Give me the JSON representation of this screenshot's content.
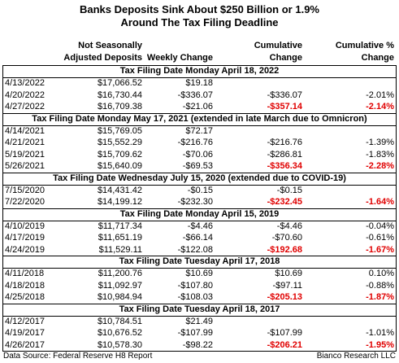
{
  "title": [
    "Banks Deposits Sink About $250 Billion or 1.9%",
    "Around The Tax Filing Deadline"
  ],
  "columns": [
    [
      "Not Seasonally",
      "Adjusted Deposits"
    ],
    [
      "Weekly Change"
    ],
    [
      "Cumulative",
      "Change"
    ],
    [
      "Cumulative %",
      "Change"
    ]
  ],
  "sections": [
    {
      "heading": "Tax Filing Date Monday April 18, 2022",
      "rows": [
        {
          "cells": [
            "4/13/2022",
            "$17,066.52",
            "$19.18",
            null,
            null
          ]
        },
        {
          "cells": [
            "4/20/2022",
            "$16,730.44",
            "-$336.07",
            "-$336.07",
            "-2.01%"
          ]
        },
        {
          "cells": [
            "4/27/2022",
            "$16,709.38",
            "-$21.06",
            "-$357.14",
            "-2.14%"
          ],
          "highlight": true
        }
      ]
    },
    {
      "heading": "Tax Filing Date Monday May 17, 2021 (extended in late March due to Omnicron)",
      "rows": [
        {
          "cells": [
            "4/14/2021",
            "$15,769.05",
            "$72.17",
            null,
            null
          ]
        },
        {
          "cells": [
            "4/21/2021",
            "$15,552.29",
            "-$216.76",
            "-$216.76",
            "-1.39%"
          ]
        },
        {
          "cells": [
            "5/19/2021",
            "$15,709.62",
            "-$70.06",
            "-$286.81",
            "-1.83%"
          ]
        },
        {
          "cells": [
            "5/26/2021",
            "$15,640.09",
            "-$69.53",
            "-$356.34",
            "-2.28%"
          ],
          "highlight": true
        }
      ]
    },
    {
      "heading": "Tax Filing Date Wednesday July 15, 2020 (extended due to COVID-19)",
      "rows": [
        {
          "cells": [
            "7/15/2020",
            "$14,431.42",
            "-$0.15",
            "-$0.15",
            null
          ]
        },
        {
          "cells": [
            "7/22/2020",
            "$14,199.12",
            "-$232.30",
            "-$232.45",
            "-1.64%"
          ],
          "highlight": true
        }
      ]
    },
    {
      "heading": "Tax Filing Date Monday April 15, 2019",
      "rows": [
        {
          "cells": [
            "4/10/2019",
            "$11,717.34",
            "-$4.46",
            "-$4.46",
            "-0.04%"
          ]
        },
        {
          "cells": [
            "4/17/2019",
            "$11,651.19",
            "-$66.14",
            "-$70.60",
            "-0.61%"
          ]
        },
        {
          "cells": [
            "4/24/2019",
            "$11,529.11",
            "-$122.08",
            "-$192.68",
            "-1.67%"
          ],
          "highlight": true
        }
      ]
    },
    {
      "heading": "Tax Filing Date Tuesday April 17, 2018",
      "rows": [
        {
          "cells": [
            "4/11/2018",
            "$11,200.76",
            "$10.69",
            "$10.69",
            "0.10%"
          ]
        },
        {
          "cells": [
            "4/18/2018",
            "$11,092.97",
            "-$107.80",
            "-$97.11",
            "-0.88%"
          ]
        },
        {
          "cells": [
            "4/25/2018",
            "$10,984.94",
            "-$108.03",
            "-$205.13",
            "-1.87%"
          ],
          "highlight": true
        }
      ]
    },
    {
      "heading": "Tax Filing Date Tuesday April 18, 2017",
      "rows": [
        {
          "cells": [
            "4/12/2017",
            "$10,784.51",
            "$21.49",
            null,
            null
          ]
        },
        {
          "cells": [
            "4/19/2017",
            "$10,676.52",
            "-$107.99",
            "-$107.99",
            "-1.01%"
          ]
        },
        {
          "cells": [
            "4/26/2017",
            "$10,578.30",
            "-$98.22",
            "-$206.21",
            "-1.95%"
          ],
          "highlight": true
        }
      ]
    }
  ],
  "footer": {
    "source": "Data Source: Federal Reserve H8 Report",
    "credit": "Bianco Research LLC"
  }
}
